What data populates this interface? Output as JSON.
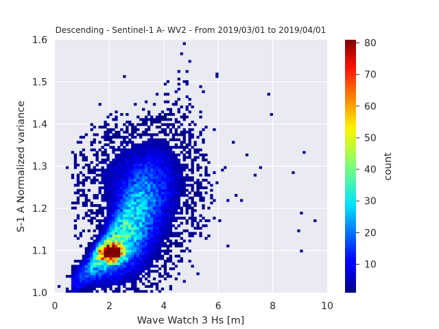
{
  "chart_data": {
    "type": "heatmap",
    "title": "Descending - Sentinel-1 A- WV2 - From 2019/03/01 to 2019/04/01",
    "xlabel": "Wave Watch 3 Hs [m]",
    "ylabel": "S-1 A Normalized variance",
    "xlim": [
      0,
      10
    ],
    "ylim": [
      1.0,
      1.6
    ],
    "xticks": [
      "0",
      "2",
      "4",
      "6",
      "8",
      "10"
    ],
    "yticks": [
      "1.0",
      "1.1",
      "1.2",
      "1.3",
      "1.4",
      "1.5",
      "1.6"
    ],
    "grid": true,
    "colormap": "jet",
    "colorbar": {
      "label": "count",
      "range": [
        1,
        81
      ],
      "ticks": [
        "10",
        "20",
        "30",
        "40",
        "50",
        "60",
        "70",
        "80"
      ]
    },
    "bins": {
      "x": 100,
      "y": 100
    },
    "density_description": "2D histogram: density ridge from (1.0 m, 1.03) through peak near (2.0 m, 1.09) with count ~80, spreading upward and rightward to about (6 m, 1.35); sparse outliers up to 10 m and 1.6"
  },
  "colors": {
    "axes_background": "#e9eaf2",
    "grid": "#ffffff",
    "text": "#262626"
  }
}
